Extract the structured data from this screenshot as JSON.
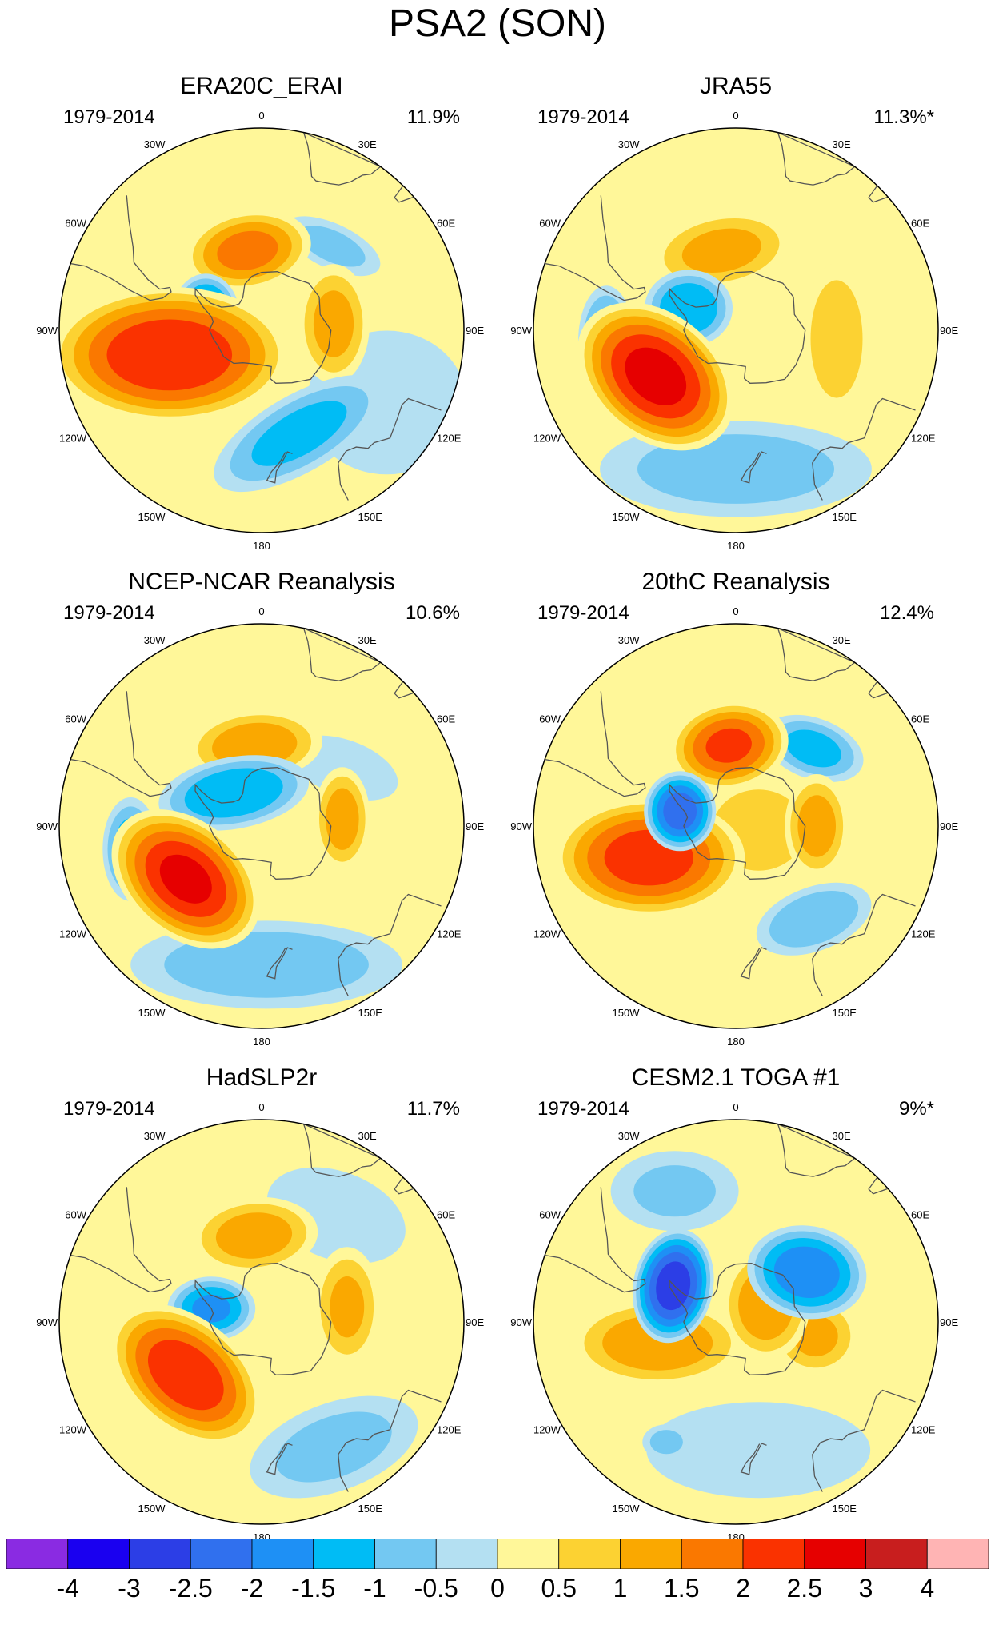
{
  "title": "PSA2 (SON)",
  "colors": {
    "coast": "#555555",
    "outline": "#000000"
  },
  "colorbar": {
    "levels": [
      "-4",
      "-3",
      "-2.5",
      "-2",
      "-1.5",
      "-1",
      "-0.5",
      "0",
      "0.5",
      "1",
      "1.5",
      "2",
      "2.5",
      "3",
      "4"
    ],
    "colors": [
      "#8a2be2",
      "#1a00f0",
      "#2c3ee6",
      "#3070ee",
      "#1e90f5",
      "#00bcf5",
      "#73c8f2",
      "#b4e0f2",
      "#fff799",
      "#fcd232",
      "#faa800",
      "#fa7800",
      "#fa3200",
      "#e60000",
      "#c81e1e",
      "#ffb4b4"
    ]
  },
  "lon_labels": [
    "0",
    "30E",
    "60E",
    "90E",
    "120E",
    "150E",
    "180",
    "150W",
    "120W",
    "90W",
    "60W",
    "30W"
  ],
  "panels": [
    {
      "title": "ERA20C_ERAI",
      "period": "1979-2014",
      "variance": "11.9%",
      "blobs": [
        {
          "lat": -57,
          "lon": -105,
          "v": 2.4,
          "ax": 150,
          "ay": 85,
          "rot": 0
        },
        {
          "lat": -62,
          "lon": -10,
          "v": 1.6,
          "ax": 80,
          "ay": 50,
          "rot": -10
        },
        {
          "lat": -70,
          "lon": -75,
          "v": -1.9,
          "ax": 42,
          "ay": 52,
          "rot": 0
        },
        {
          "lat": -65,
          "lon": 85,
          "v": 1.1,
          "ax": 45,
          "ay": 75,
          "rot": 0
        },
        {
          "lat": -52,
          "lon": 160,
          "v": -1.1,
          "ax": 120,
          "ay": 48,
          "rot": -30
        },
        {
          "lat": -52,
          "lon": 40,
          "v": -0.6,
          "ax": 65,
          "ay": 28,
          "rot": 25
        },
        {
          "lat": -40,
          "lon": 120,
          "v": -0.3,
          "ax": 100,
          "ay": 90,
          "rot": 0
        }
      ]
    },
    {
      "title": "JRA55",
      "period": "1979-2014",
      "variance": "11.3%*",
      "blobs": [
        {
          "lat": -58,
          "lon": -120,
          "v": 2.6,
          "ax": 110,
          "ay": 78,
          "rot": 40
        },
        {
          "lat": -62,
          "lon": -10,
          "v": 1.1,
          "ax": 90,
          "ay": 48,
          "rot": -10
        },
        {
          "lat": -72,
          "lon": -65,
          "v": -1.4,
          "ax": 55,
          "ay": 48,
          "rot": 0
        },
        {
          "lat": -55,
          "lon": 95,
          "v": 0.9,
          "ax": 42,
          "ay": 95,
          "rot": 0
        },
        {
          "lat": -45,
          "lon": -95,
          "v": -1.2,
          "ax": 35,
          "ay": 70,
          "rot": 0
        },
        {
          "lat": -42,
          "lon": 180,
          "v": -0.7,
          "ax": 170,
          "ay": 60,
          "rot": 0
        }
      ]
    },
    {
      "title": "NCEP-NCAR Reanalysis",
      "period": "1979-2014",
      "variance": "10.6%",
      "blobs": [
        {
          "lat": -58,
          "lon": -125,
          "v": 2.5,
          "ax": 105,
          "ay": 72,
          "rot": 40
        },
        {
          "lat": -62,
          "lon": -5,
          "v": 1.3,
          "ax": 85,
          "ay": 45,
          "rot": -5
        },
        {
          "lat": -75,
          "lon": -40,
          "v": -1.4,
          "ax": 95,
          "ay": 45,
          "rot": -10
        },
        {
          "lat": -62,
          "lon": 85,
          "v": 1.2,
          "ax": 35,
          "ay": 65,
          "rot": 0
        },
        {
          "lat": -44,
          "lon": -100,
          "v": -1.2,
          "ax": 35,
          "ay": 65,
          "rot": 0
        },
        {
          "lat": -42,
          "lon": 178,
          "v": -0.8,
          "ax": 170,
          "ay": 55,
          "rot": 0
        },
        {
          "lat": -55,
          "lon": 55,
          "v": -0.3,
          "ax": 70,
          "ay": 35,
          "rot": 20
        }
      ]
    },
    {
      "title": "20thC Reanalysis",
      "period": "1979-2014",
      "variance": "12.4%",
      "blobs": [
        {
          "lat": -58,
          "lon": -110,
          "v": 2.2,
          "ax": 120,
          "ay": 75,
          "rot": 0
        },
        {
          "lat": -62,
          "lon": -5,
          "v": 2.0,
          "ax": 75,
          "ay": 55,
          "rot": -10
        },
        {
          "lat": -70,
          "lon": -75,
          "v": -2.2,
          "ax": 45,
          "ay": 50,
          "rot": 0
        },
        {
          "lat": -62,
          "lon": 90,
          "v": 1.2,
          "ax": 40,
          "ay": 65,
          "rot": 0
        },
        {
          "lat": -52,
          "lon": 45,
          "v": -1.1,
          "ax": 65,
          "ay": 38,
          "rot": 20
        },
        {
          "lat": -48,
          "lon": 140,
          "v": -0.9,
          "ax": 75,
          "ay": 40,
          "rot": -20
        },
        {
          "lat": -82,
          "lon": 100,
          "v": 0.7,
          "ax": 80,
          "ay": 70,
          "rot": 0
        }
      ]
    },
    {
      "title": "HadSLP2r",
      "period": "1979-2014",
      "variance": "11.7%",
      "blobs": [
        {
          "lat": -58,
          "lon": -125,
          "v": 2.3,
          "ax": 110,
          "ay": 70,
          "rot": 40
        },
        {
          "lat": -60,
          "lon": -5,
          "v": 1.2,
          "ax": 80,
          "ay": 48,
          "rot": -5
        },
        {
          "lat": -72,
          "lon": -75,
          "v": -1.5,
          "ax": 55,
          "ay": 40,
          "rot": 0
        },
        {
          "lat": -60,
          "lon": 80,
          "v": 1.0,
          "ax": 42,
          "ay": 75,
          "rot": 0
        },
        {
          "lat": -40,
          "lon": 150,
          "v": -0.6,
          "ax": 110,
          "ay": 55,
          "rot": -20
        },
        {
          "lat": -45,
          "lon": 35,
          "v": -0.4,
          "ax": 90,
          "ay": 55,
          "rot": 20
        }
      ]
    },
    {
      "title": "CESM2.1 TOGA #1",
      "period": "1979-2014",
      "variance": "9%*",
      "blobs": [
        {
          "lat": -65,
          "lon": -60,
          "v": -2.7,
          "ax": 50,
          "ay": 72,
          "rot": 10
        },
        {
          "lat": -60,
          "lon": 55,
          "v": -1.8,
          "ax": 75,
          "ay": 58,
          "rot": 10
        },
        {
          "lat": -62,
          "lon": -105,
          "v": 1.3,
          "ax": 110,
          "ay": 55,
          "rot": 0
        },
        {
          "lat": -78,
          "lon": 60,
          "v": 1.3,
          "ax": 55,
          "ay": 70,
          "rot": 0
        },
        {
          "lat": -62,
          "lon": 100,
          "v": 1.0,
          "ax": 55,
          "ay": 50,
          "rot": 0
        },
        {
          "lat": -40,
          "lon": -25,
          "v": -0.5,
          "ax": 80,
          "ay": 50,
          "rot": 0
        },
        {
          "lat": -45,
          "lon": 170,
          "v": -0.4,
          "ax": 140,
          "ay": 60,
          "rot": 0
        },
        {
          "lat": -42,
          "lon": -150,
          "v": -0.6,
          "ax": 30,
          "ay": 22,
          "rot": 0
        }
      ]
    }
  ]
}
